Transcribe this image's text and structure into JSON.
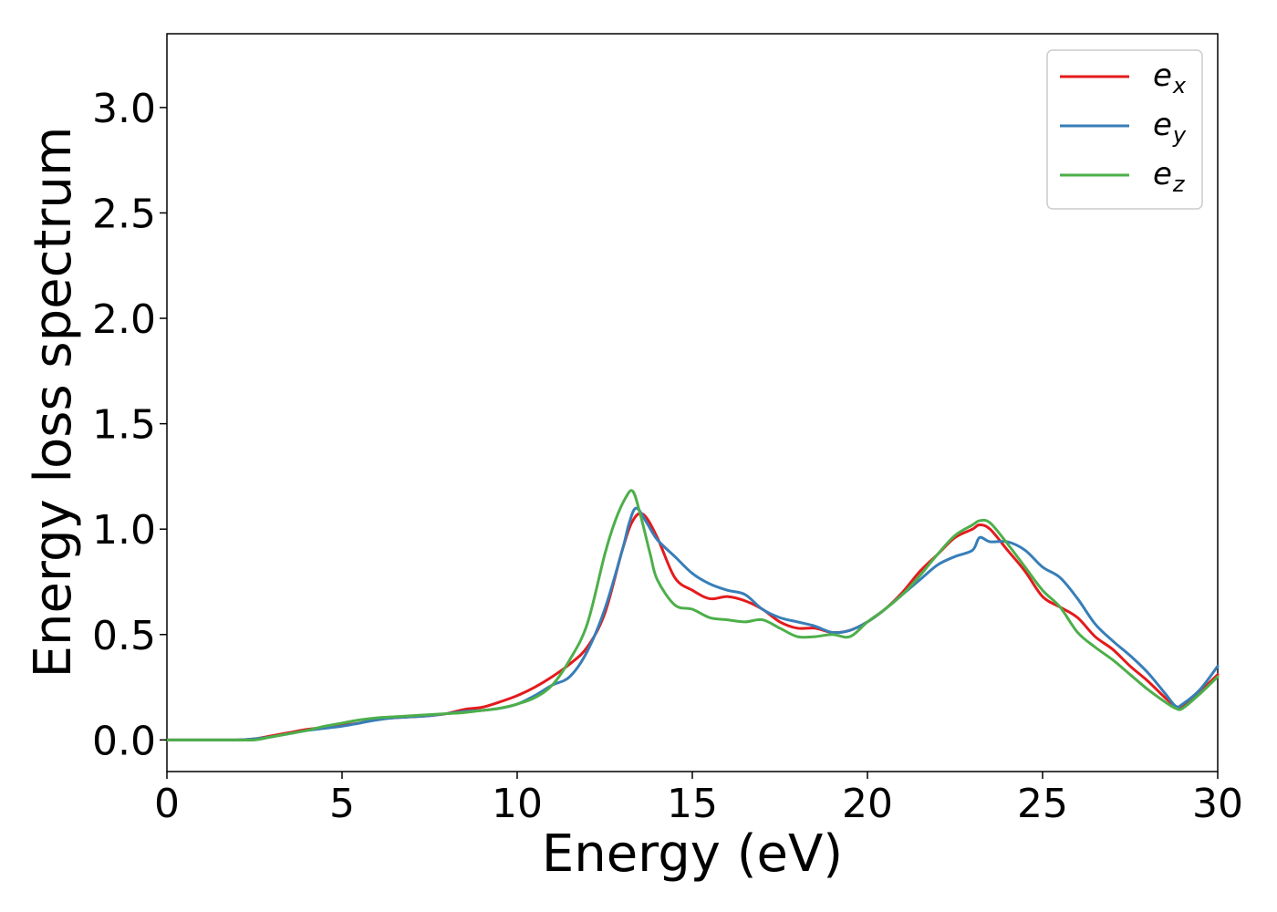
{
  "chart_data": {
    "type": "line",
    "title": "",
    "xlabel": "Energy (eV)",
    "ylabel": "Energy loss spectrum",
    "xlim": [
      0,
      30
    ],
    "ylim": [
      -0.15,
      3.35
    ],
    "xticks": [
      0,
      5,
      10,
      15,
      20,
      25,
      30
    ],
    "xtick_labels": [
      "0",
      "5",
      "10",
      "15",
      "20",
      "25",
      "30"
    ],
    "yticks": [
      0.0,
      0.5,
      1.0,
      1.5,
      2.0,
      2.5,
      3.0
    ],
    "ytick_labels": [
      "0.0",
      "0.5",
      "1.0",
      "1.5",
      "2.0",
      "2.5",
      "3.0"
    ],
    "grid": false,
    "legend_position": "top-right",
    "series": [
      {
        "name": "e_x",
        "legend_base": "e",
        "legend_sub": "x",
        "color": "#e41a1c",
        "x": [
          0,
          1,
          2,
          2.5,
          3,
          3.5,
          4,
          4.5,
          5,
          5.5,
          6,
          6.5,
          7,
          7.5,
          8,
          8.5,
          9,
          9.5,
          10,
          10.5,
          11,
          11.5,
          12,
          12.5,
          13,
          13.3,
          13.6,
          14,
          14.5,
          15,
          15.5,
          16,
          16.5,
          17,
          17.5,
          18,
          18.5,
          19,
          19.5,
          20,
          20.5,
          21,
          21.5,
          22,
          22.5,
          23,
          23.2,
          23.5,
          24,
          24.5,
          25,
          25.5,
          26,
          26.5,
          27,
          27.5,
          28,
          28.5,
          28.8,
          29,
          29.5,
          30
        ],
        "y": [
          0,
          0,
          0,
          0.005,
          0.02,
          0.035,
          0.05,
          0.06,
          0.07,
          0.08,
          0.1,
          0.105,
          0.11,
          0.115,
          0.125,
          0.145,
          0.155,
          0.18,
          0.21,
          0.25,
          0.3,
          0.36,
          0.44,
          0.6,
          0.9,
          1.04,
          1.07,
          0.96,
          0.77,
          0.71,
          0.67,
          0.68,
          0.66,
          0.62,
          0.56,
          0.53,
          0.53,
          0.51,
          0.52,
          0.56,
          0.62,
          0.7,
          0.8,
          0.88,
          0.96,
          1.0,
          1.02,
          1.0,
          0.9,
          0.8,
          0.68,
          0.63,
          0.58,
          0.49,
          0.43,
          0.35,
          0.28,
          0.2,
          0.16,
          0.16,
          0.23,
          0.31
        ]
      },
      {
        "name": "e_y",
        "legend_base": "e",
        "legend_sub": "y",
        "color": "#377eb8",
        "x": [
          0,
          1,
          2,
          2.5,
          3,
          3.5,
          4,
          4.5,
          5,
          5.5,
          6,
          6.5,
          7,
          7.5,
          8,
          8.5,
          9,
          9.5,
          10,
          10.5,
          11,
          11.5,
          12,
          12.5,
          13,
          13.2,
          13.4,
          13.7,
          14,
          14.5,
          15,
          15.5,
          16,
          16.5,
          17,
          17.5,
          18,
          18.5,
          19,
          19.5,
          20,
          20.5,
          21,
          21.5,
          22,
          22.5,
          23,
          23.2,
          23.5,
          24,
          24.5,
          25,
          25.5,
          26,
          26.5,
          27,
          27.5,
          28,
          28.5,
          28.8,
          29,
          29.5,
          30
        ],
        "y": [
          0,
          0,
          0,
          0.005,
          0.015,
          0.03,
          0.045,
          0.055,
          0.065,
          0.08,
          0.095,
          0.105,
          0.11,
          0.115,
          0.125,
          0.135,
          0.14,
          0.15,
          0.17,
          0.21,
          0.26,
          0.3,
          0.42,
          0.62,
          0.9,
          1.03,
          1.1,
          1.03,
          0.95,
          0.87,
          0.79,
          0.74,
          0.71,
          0.69,
          0.62,
          0.58,
          0.56,
          0.54,
          0.51,
          0.52,
          0.56,
          0.62,
          0.69,
          0.76,
          0.83,
          0.87,
          0.9,
          0.96,
          0.94,
          0.94,
          0.9,
          0.82,
          0.77,
          0.67,
          0.55,
          0.47,
          0.4,
          0.32,
          0.22,
          0.16,
          0.17,
          0.24,
          0.35
        ]
      },
      {
        "name": "e_z",
        "legend_base": "e",
        "legend_sub": "z",
        "color": "#4daf4a",
        "x": [
          0,
          1,
          2,
          2.5,
          3,
          3.5,
          4,
          4.5,
          5,
          5.5,
          6,
          6.5,
          7,
          7.5,
          8,
          8.5,
          9,
          9.5,
          10,
          10.5,
          11,
          11.5,
          12,
          12.5,
          12.8,
          13.1,
          13.3,
          13.5,
          13.8,
          14,
          14.5,
          15,
          15.5,
          16,
          16.5,
          17,
          17.5,
          18,
          18.5,
          19,
          19.5,
          20,
          20.5,
          21,
          21.5,
          22,
          22.5,
          23,
          23.2,
          23.5,
          24,
          24.5,
          25,
          25.5,
          26,
          26.5,
          27,
          27.5,
          28,
          28.5,
          28.8,
          29,
          29.5,
          30
        ],
        "y": [
          0,
          0,
          0,
          0,
          0.015,
          0.03,
          0.045,
          0.065,
          0.08,
          0.095,
          0.105,
          0.11,
          0.115,
          0.12,
          0.125,
          0.13,
          0.14,
          0.15,
          0.17,
          0.2,
          0.26,
          0.38,
          0.55,
          0.88,
          1.04,
          1.15,
          1.18,
          1.08,
          0.88,
          0.76,
          0.64,
          0.62,
          0.58,
          0.57,
          0.56,
          0.57,
          0.53,
          0.49,
          0.49,
          0.5,
          0.49,
          0.56,
          0.62,
          0.69,
          0.78,
          0.88,
          0.97,
          1.02,
          1.04,
          1.03,
          0.93,
          0.82,
          0.71,
          0.63,
          0.51,
          0.44,
          0.38,
          0.31,
          0.24,
          0.18,
          0.15,
          0.15,
          0.22,
          0.3
        ]
      }
    ]
  }
}
